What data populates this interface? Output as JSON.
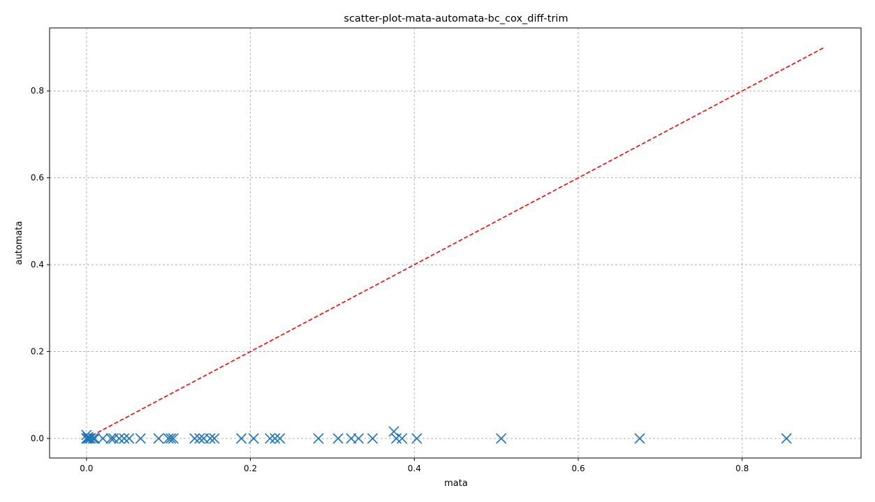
{
  "chart_data": {
    "type": "scatter",
    "title": "scatter-plot-mata-automata-bc_cox_diff-trim",
    "xlabel": "mata",
    "ylabel": "automata",
    "xlim": [
      -0.045,
      0.945
    ],
    "ylim": [
      -0.045,
      0.945
    ],
    "xticks": [
      0.0,
      0.2,
      0.4,
      0.6,
      0.8
    ],
    "yticks": [
      0.0,
      0.2,
      0.4,
      0.6,
      0.8
    ],
    "xtick_labels": [
      "0.0",
      "0.2",
      "0.4",
      "0.6",
      "0.8"
    ],
    "ytick_labels": [
      "0.0",
      "0.2",
      "0.4",
      "0.6",
      "0.8"
    ],
    "grid": true,
    "marker": "x",
    "series_color": "#1f77b4",
    "reference_line": {
      "x": [
        0.0,
        0.9
      ],
      "y": [
        0.0,
        0.9
      ],
      "color": "#ff0000",
      "style": "dashed"
    },
    "points": [
      {
        "x": 0.0,
        "y": 0.0
      },
      {
        "x": 0.0,
        "y": 0.008
      },
      {
        "x": 0.001,
        "y": 0.0
      },
      {
        "x": 0.002,
        "y": 0.003
      },
      {
        "x": 0.003,
        "y": 0.0
      },
      {
        "x": 0.005,
        "y": 0.0
      },
      {
        "x": 0.008,
        "y": 0.0
      },
      {
        "x": 0.01,
        "y": 0.0
      },
      {
        "x": 0.02,
        "y": 0.0
      },
      {
        "x": 0.03,
        "y": 0.0
      },
      {
        "x": 0.033,
        "y": 0.0
      },
      {
        "x": 0.04,
        "y": 0.0
      },
      {
        "x": 0.046,
        "y": 0.0
      },
      {
        "x": 0.052,
        "y": 0.0
      },
      {
        "x": 0.066,
        "y": 0.0
      },
      {
        "x": 0.088,
        "y": 0.0
      },
      {
        "x": 0.1,
        "y": 0.0
      },
      {
        "x": 0.103,
        "y": 0.0
      },
      {
        "x": 0.106,
        "y": 0.0
      },
      {
        "x": 0.132,
        "y": 0.0
      },
      {
        "x": 0.138,
        "y": 0.0
      },
      {
        "x": 0.143,
        "y": 0.0
      },
      {
        "x": 0.151,
        "y": 0.0
      },
      {
        "x": 0.156,
        "y": 0.0
      },
      {
        "x": 0.189,
        "y": 0.0
      },
      {
        "x": 0.204,
        "y": 0.0
      },
      {
        "x": 0.224,
        "y": 0.0
      },
      {
        "x": 0.23,
        "y": 0.0
      },
      {
        "x": 0.236,
        "y": 0.0
      },
      {
        "x": 0.283,
        "y": 0.0
      },
      {
        "x": 0.307,
        "y": 0.0
      },
      {
        "x": 0.323,
        "y": 0.0
      },
      {
        "x": 0.332,
        "y": 0.0
      },
      {
        "x": 0.349,
        "y": 0.0
      },
      {
        "x": 0.375,
        "y": 0.016
      },
      {
        "x": 0.378,
        "y": 0.0
      },
      {
        "x": 0.385,
        "y": 0.0
      },
      {
        "x": 0.403,
        "y": 0.0
      },
      {
        "x": 0.506,
        "y": 0.0
      },
      {
        "x": 0.675,
        "y": 0.0
      },
      {
        "x": 0.854,
        "y": 0.0
      }
    ]
  }
}
